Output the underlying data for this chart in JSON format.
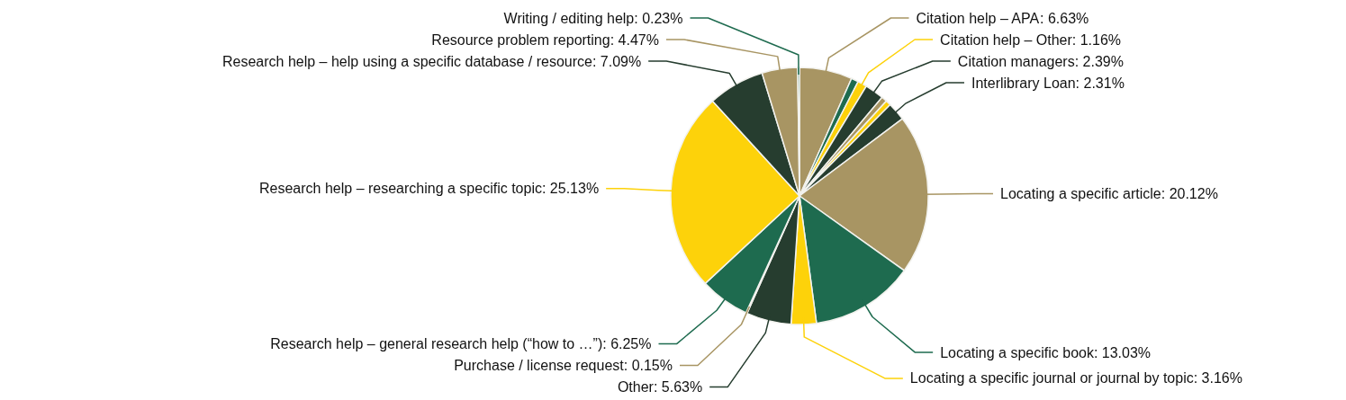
{
  "chart_data": {
    "type": "pie",
    "categories": [
      "Citation help – APA",
      null,
      "Citation help – Other",
      "Citation managers",
      null,
      null,
      "Interlibrary Loan",
      "Locating a specific article",
      "Locating a specific book",
      "Locating a specific journal or journal by topic",
      "Other",
      "Purchase / license request",
      "Research help – general research help (“how to …”)",
      "Research help – researching a specific topic",
      "Research help – help using a specific database / resource",
      "Resource problem reporting",
      "Writing / editing help"
    ],
    "values": [
      6.63,
      0.9,
      1.16,
      2.39,
      0.7,
      0.65,
      2.31,
      20.12,
      13.03,
      3.16,
      5.63,
      0.15,
      6.25,
      25.13,
      7.09,
      4.47,
      0.23
    ],
    "value_labels": [
      ": 6.63%",
      null,
      ": 1.16%",
      ": 2.39%",
      null,
      null,
      ": 2.31%",
      ": 20.12%",
      ": 13.03%",
      ": 3.16%",
      ": 5.63%",
      ": 0.15%",
      ": 6.25%",
      ": 25.13%",
      ": 7.09%",
      ": 4.47%",
      ": 0.23%"
    ],
    "colors": [
      "#a89563",
      "#1e6b4f",
      "#fdd20a",
      "#263d2f",
      "#a89563",
      "#fdd20a",
      "#263d2f",
      "#a89563",
      "#1e6b4f",
      "#fdd20a",
      "#263d2f",
      "#a89563",
      "#1e6b4f",
      "#fdd20a",
      "#263d2f",
      "#a89563",
      "#1e6b4f"
    ]
  }
}
